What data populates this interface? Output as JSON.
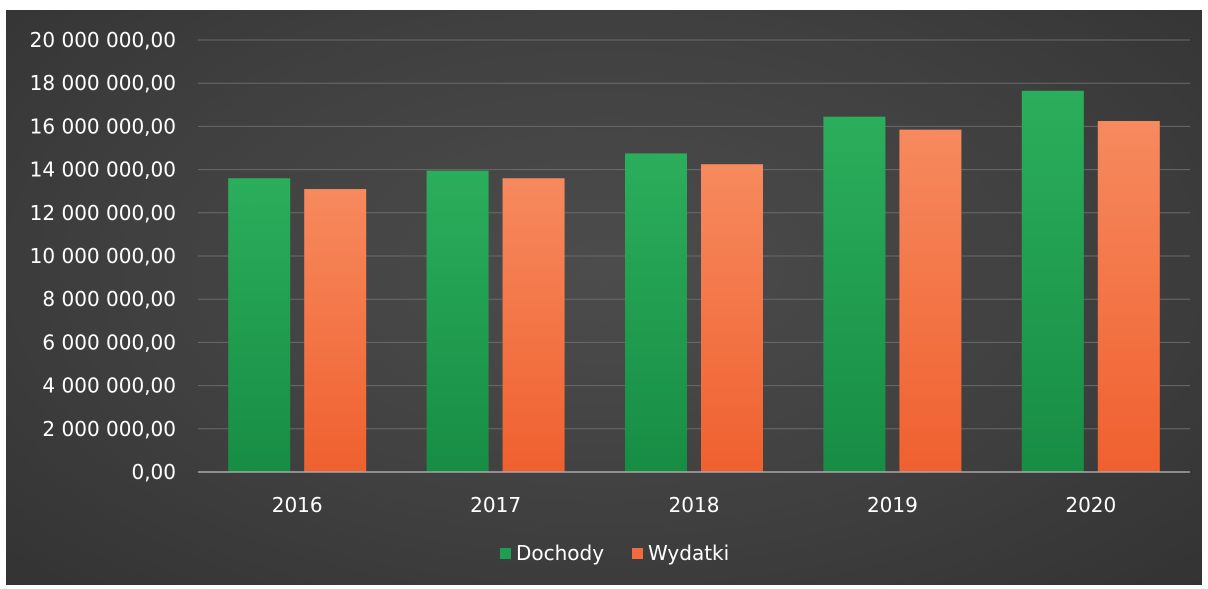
{
  "chart_data": {
    "type": "bar",
    "categories": [
      "2016",
      "2017",
      "2018",
      "2019",
      "2020"
    ],
    "series": [
      {
        "name": "Dochody",
        "values": [
          13600000,
          13950000,
          14750000,
          16450000,
          17650000
        ],
        "color": "#1e9e50"
      },
      {
        "name": "Wydatki",
        "values": [
          13100000,
          13600000,
          14250000,
          15850000,
          16250000
        ],
        "color": "#f26b3f"
      }
    ],
    "ylim": [
      0,
      20000000
    ],
    "yticks": [
      0,
      2000000,
      4000000,
      6000000,
      8000000,
      10000000,
      12000000,
      14000000,
      16000000,
      18000000,
      20000000
    ],
    "ytick_labels": [
      "0,00",
      "2 000 000,00",
      "4 000 000,00",
      "6 000 000,00",
      "8 000 000,00",
      "10 000 000,00",
      "12 000 000,00",
      "14 000 000,00",
      "16 000 000,00",
      "18 000 000,00",
      "20 000 000,00"
    ],
    "grid": true,
    "legend_position": "bottom",
    "title": "",
    "xlabel": "",
    "ylabel": ""
  }
}
